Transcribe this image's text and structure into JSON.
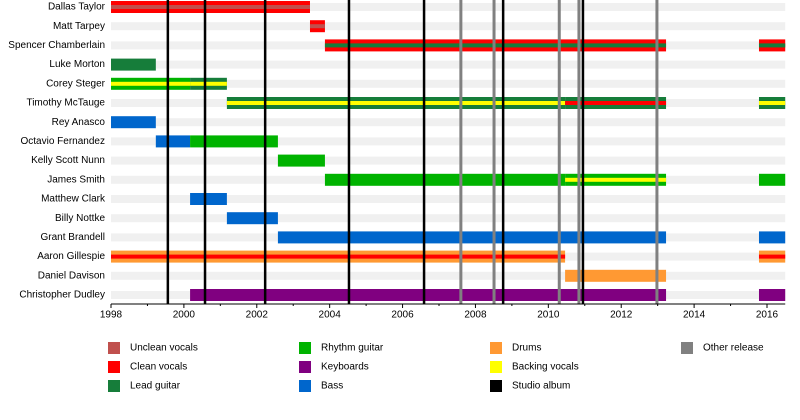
{
  "chart_data": {
    "type": "timeline",
    "xlim": [
      1998,
      2016.5
    ],
    "xticks": [
      1998,
      2000,
      2002,
      2004,
      2006,
      2008,
      2010,
      2012,
      2014,
      2016
    ],
    "roles": [
      {
        "name": "Unclean vocals",
        "color": "#c0504d"
      },
      {
        "name": "Clean vocals",
        "color": "#ff0000"
      },
      {
        "name": "Lead guitar",
        "color": "#167d3a"
      },
      {
        "name": "Rhythm guitar",
        "color": "#00b300"
      },
      {
        "name": "Keyboards",
        "color": "#800080"
      },
      {
        "name": "Bass",
        "color": "#0066cc"
      },
      {
        "name": "Drums",
        "color": "#ff9933"
      },
      {
        "name": "Backing vocals",
        "color": "#ffff00"
      },
      {
        "name": "Studio album",
        "color": "#000000"
      },
      {
        "name": "Other release",
        "color": "#808080"
      }
    ],
    "members": [
      {
        "name": "Dallas Taylor",
        "periods": [
          {
            "role": "Clean vocals",
            "stripe": "Unclean vocals",
            "start": 1998.0,
            "end": 2003.46
          }
        ]
      },
      {
        "name": "Matt Tarpey",
        "periods": [
          {
            "role": "Clean vocals",
            "stripe": "Unclean vocals",
            "start": 2003.46,
            "end": 2003.87
          }
        ]
      },
      {
        "name": "Spencer Chamberlain",
        "periods": [
          {
            "role": "Clean vocals",
            "stripe": "Lead guitar",
            "start": 2003.87,
            "end": 2013.23
          },
          {
            "role": "Clean vocals",
            "stripe": "Lead guitar",
            "start": 2015.78,
            "end": 2016.5
          }
        ]
      },
      {
        "name": "Luke Morton",
        "periods": [
          {
            "role": "Lead guitar",
            "start": 1998.0,
            "end": 1999.23
          }
        ]
      },
      {
        "name": "Corey Steger",
        "periods": [
          {
            "role": "Rhythm guitar",
            "stripe": "Backing vocals",
            "start": 1998.0,
            "end": 2000.17
          },
          {
            "role": "Lead guitar",
            "stripe": "Backing vocals",
            "start": 2000.17,
            "end": 2001.18
          }
        ]
      },
      {
        "name": "Timothy McTauge",
        "periods": [
          {
            "role": "Lead guitar",
            "stripe": "Backing vocals",
            "start": 2001.18,
            "end": 2010.46
          },
          {
            "role": "Lead guitar",
            "stripe": "Clean vocals",
            "start": 2010.46,
            "end": 2013.23
          },
          {
            "role": "Lead guitar",
            "stripe": "Backing vocals",
            "start": 2015.78,
            "end": 2016.5
          }
        ]
      },
      {
        "name": "Rey Anasco",
        "periods": [
          {
            "role": "Bass",
            "start": 1998.0,
            "end": 1999.23
          }
        ]
      },
      {
        "name": "Octavio Fernandez",
        "periods": [
          {
            "role": "Bass",
            "start": 1999.23,
            "end": 2000.17
          },
          {
            "role": "Rhythm guitar",
            "start": 2000.17,
            "end": 2002.58
          }
        ]
      },
      {
        "name": "Kelly Scott Nunn",
        "periods": [
          {
            "role": "Rhythm guitar",
            "start": 2002.58,
            "end": 2003.87
          }
        ]
      },
      {
        "name": "James Smith",
        "periods": [
          {
            "role": "Rhythm guitar",
            "start": 2003.87,
            "end": 2010.46
          },
          {
            "role": "Rhythm guitar",
            "stripe": "Backing vocals",
            "start": 2010.46,
            "end": 2013.23
          },
          {
            "role": "Rhythm guitar",
            "start": 2015.78,
            "end": 2016.5
          }
        ]
      },
      {
        "name": "Matthew Clark",
        "periods": [
          {
            "role": "Bass",
            "start": 2000.17,
            "end": 2001.18
          }
        ]
      },
      {
        "name": "Billy Nottke",
        "periods": [
          {
            "role": "Bass",
            "start": 2001.18,
            "end": 2002.58
          }
        ]
      },
      {
        "name": "Grant Brandell",
        "periods": [
          {
            "role": "Bass",
            "start": 2002.58,
            "end": 2013.23
          },
          {
            "role": "Bass",
            "start": 2015.78,
            "end": 2016.5
          }
        ]
      },
      {
        "name": "Aaron Gillespie",
        "periods": [
          {
            "role": "Drums",
            "stripe": "Clean vocals",
            "start": 1998.0,
            "end": 2010.46
          },
          {
            "role": "Drums",
            "stripe": "Clean vocals",
            "start": 2015.78,
            "end": 2016.5
          }
        ]
      },
      {
        "name": "Daniel Davison",
        "periods": [
          {
            "role": "Drums",
            "start": 2010.46,
            "end": 2013.23
          }
        ]
      },
      {
        "name": "Christopher Dudley",
        "periods": [
          {
            "role": "Keyboards",
            "start": 2000.17,
            "end": 2013.23
          },
          {
            "role": "Keyboards",
            "start": 2015.78,
            "end": 2016.5
          }
        ]
      }
    ],
    "releases": [
      {
        "kind": "Other release",
        "x": 2007.6
      },
      {
        "kind": "Other release",
        "x": 2008.51
      },
      {
        "kind": "Other release",
        "x": 2010.3
      },
      {
        "kind": "Other release",
        "x": 2010.84
      },
      {
        "kind": "Other release",
        "x": 2012.98
      },
      {
        "kind": "Studio album",
        "x": 1999.56
      },
      {
        "kind": "Studio album",
        "x": 2000.58
      },
      {
        "kind": "Studio album",
        "x": 2002.23
      },
      {
        "kind": "Studio album",
        "x": 2004.53
      },
      {
        "kind": "Studio album",
        "x": 2006.59
      },
      {
        "kind": "Studio album",
        "x": 2008.76
      },
      {
        "kind": "Studio album",
        "x": 2010.95
      }
    ]
  }
}
